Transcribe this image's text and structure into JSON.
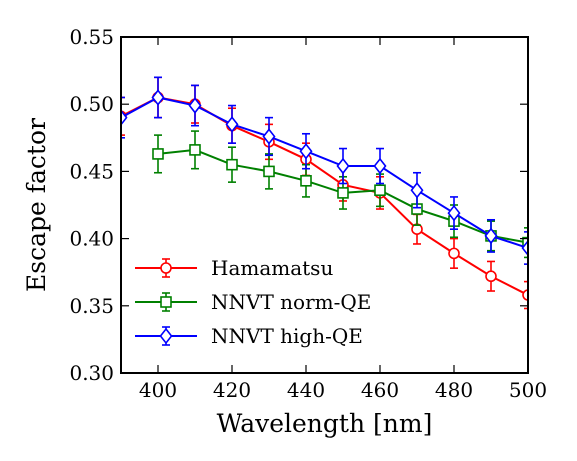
{
  "chart_data": {
    "type": "line",
    "xlabel": "Wavelength [nm]",
    "ylabel": "Escape factor",
    "xlim": [
      390,
      500
    ],
    "ylim": [
      0.3,
      0.55
    ],
    "x_ticks": [
      400,
      420,
      440,
      460,
      480,
      500
    ],
    "x_tick_labels": [
      "400",
      "420",
      "440",
      "460",
      "480",
      "500"
    ],
    "y_ticks": [
      0.3,
      0.35,
      0.4,
      0.45,
      0.5,
      0.55
    ],
    "y_tick_labels": [
      "0.30",
      "0.35",
      "0.40",
      "0.45",
      "0.50",
      "0.55"
    ],
    "grid": false,
    "legend_position": "bottom-left",
    "series": [
      {
        "name": "Hamamatsu",
        "color": "#ff0000",
        "marker": "circle",
        "x": [
          390,
          400,
          410,
          420,
          430,
          440,
          450,
          460,
          470,
          480,
          490,
          500
        ],
        "y": [
          0.491,
          0.505,
          0.5,
          0.484,
          0.472,
          0.459,
          0.44,
          0.434,
          0.407,
          0.389,
          0.372,
          0.358
        ],
        "err": [
          0.014,
          0.015,
          0.014,
          0.013,
          0.013,
          0.012,
          0.012,
          0.012,
          0.011,
          0.011,
          0.011,
          0.01
        ]
      },
      {
        "name": "NNVT norm-QE",
        "color": "#008000",
        "marker": "square",
        "x": [
          400,
          410,
          420,
          430,
          440,
          450,
          460,
          470,
          480,
          490,
          500
        ],
        "y": [
          0.463,
          0.466,
          0.455,
          0.45,
          0.443,
          0.434,
          0.436,
          0.422,
          0.413,
          0.402,
          0.397
        ],
        "err": [
          0.014,
          0.014,
          0.013,
          0.013,
          0.012,
          0.012,
          0.012,
          0.012,
          0.012,
          0.011,
          0.011
        ]
      },
      {
        "name": "NNVT high-QE",
        "color": "#0000ff",
        "marker": "diamond",
        "x": [
          390,
          400,
          410,
          420,
          430,
          440,
          450,
          460,
          470,
          480,
          490,
          500
        ],
        "y": [
          0.49,
          0.505,
          0.499,
          0.485,
          0.476,
          0.465,
          0.454,
          0.454,
          0.436,
          0.419,
          0.402,
          0.393
        ],
        "err": [
          0.015,
          0.015,
          0.015,
          0.014,
          0.014,
          0.013,
          0.013,
          0.013,
          0.013,
          0.012,
          0.012,
          0.012
        ]
      }
    ]
  }
}
